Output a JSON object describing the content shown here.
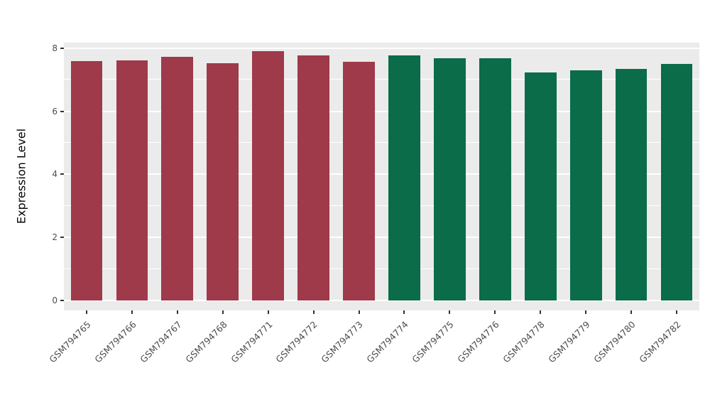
{
  "chart_data": {
    "type": "bar",
    "title": "",
    "xlabel": "",
    "ylabel": "Expression Level",
    "categories": [
      "GSM794765",
      "GSM794766",
      "GSM794767",
      "GSM794768",
      "GSM794771",
      "GSM794772",
      "GSM794773",
      "GSM794774",
      "GSM794775",
      "GSM794776",
      "GSM794778",
      "GSM794779",
      "GSM794780",
      "GSM794782"
    ],
    "values": [
      7.6,
      7.62,
      7.73,
      7.52,
      7.9,
      7.77,
      7.56,
      7.77,
      7.67,
      7.67,
      7.23,
      7.3,
      7.35,
      7.5
    ],
    "bar_colors": [
      "#9E3A4A",
      "#9E3A4A",
      "#9E3A4A",
      "#9E3A4A",
      "#9E3A4A",
      "#9E3A4A",
      "#9E3A4A",
      "#0A6C49",
      "#0A6C49",
      "#0A6C49",
      "#0A6C49",
      "#0A6C49",
      "#0A6C49",
      "#0A6C49"
    ],
    "group_colors": {
      "left_group": "#9E3A4A",
      "right_group": "#0A6C49"
    },
    "ylim": [
      0,
      8
    ],
    "yticks": [
      0,
      2,
      4,
      6,
      8
    ],
    "yticks_minor": [
      1,
      3,
      5,
      7
    ],
    "panel_background": "#EBEBEB",
    "gridline_color": "#FFFFFF",
    "tick_label_color": "#4D4D4D",
    "axis_title_color": "#000000",
    "legend": "none",
    "grid": "on"
  }
}
